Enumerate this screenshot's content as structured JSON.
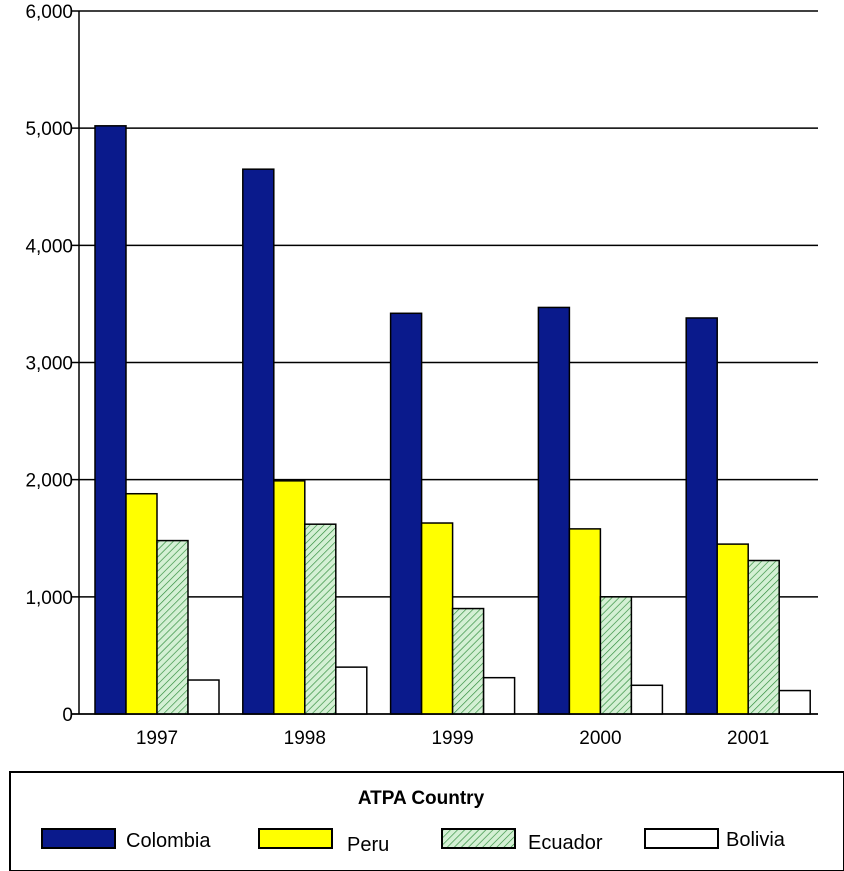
{
  "chart_data": {
    "type": "bar",
    "categories": [
      "1997",
      "1998",
      "1999",
      "2000",
      "2001"
    ],
    "ylim": [
      0,
      6000
    ],
    "yticks": [
      "0",
      "1,000",
      "2,000",
      "3,000",
      "4,000",
      "5,000",
      "6,000"
    ],
    "grid": true,
    "legend_title": "ATPA Country",
    "legend_position": "bottom",
    "series": [
      {
        "name": "Colombia",
        "color": "#0a1a8c",
        "pattern": "solid",
        "values": [
          5020,
          4650,
          3420,
          3470,
          3380
        ]
      },
      {
        "name": "Peru",
        "color": "#ffff00",
        "pattern": "solid",
        "values": [
          1880,
          1990,
          1630,
          1580,
          1450
        ]
      },
      {
        "name": "Ecuador",
        "color": "#c8ecc8",
        "pattern": "hatch",
        "values": [
          1480,
          1620,
          900,
          1000,
          1310
        ]
      },
      {
        "name": "Bolivia",
        "color": "#ffffff",
        "pattern": "solid",
        "values": [
          290,
          400,
          310,
          245,
          200
        ]
      }
    ]
  }
}
